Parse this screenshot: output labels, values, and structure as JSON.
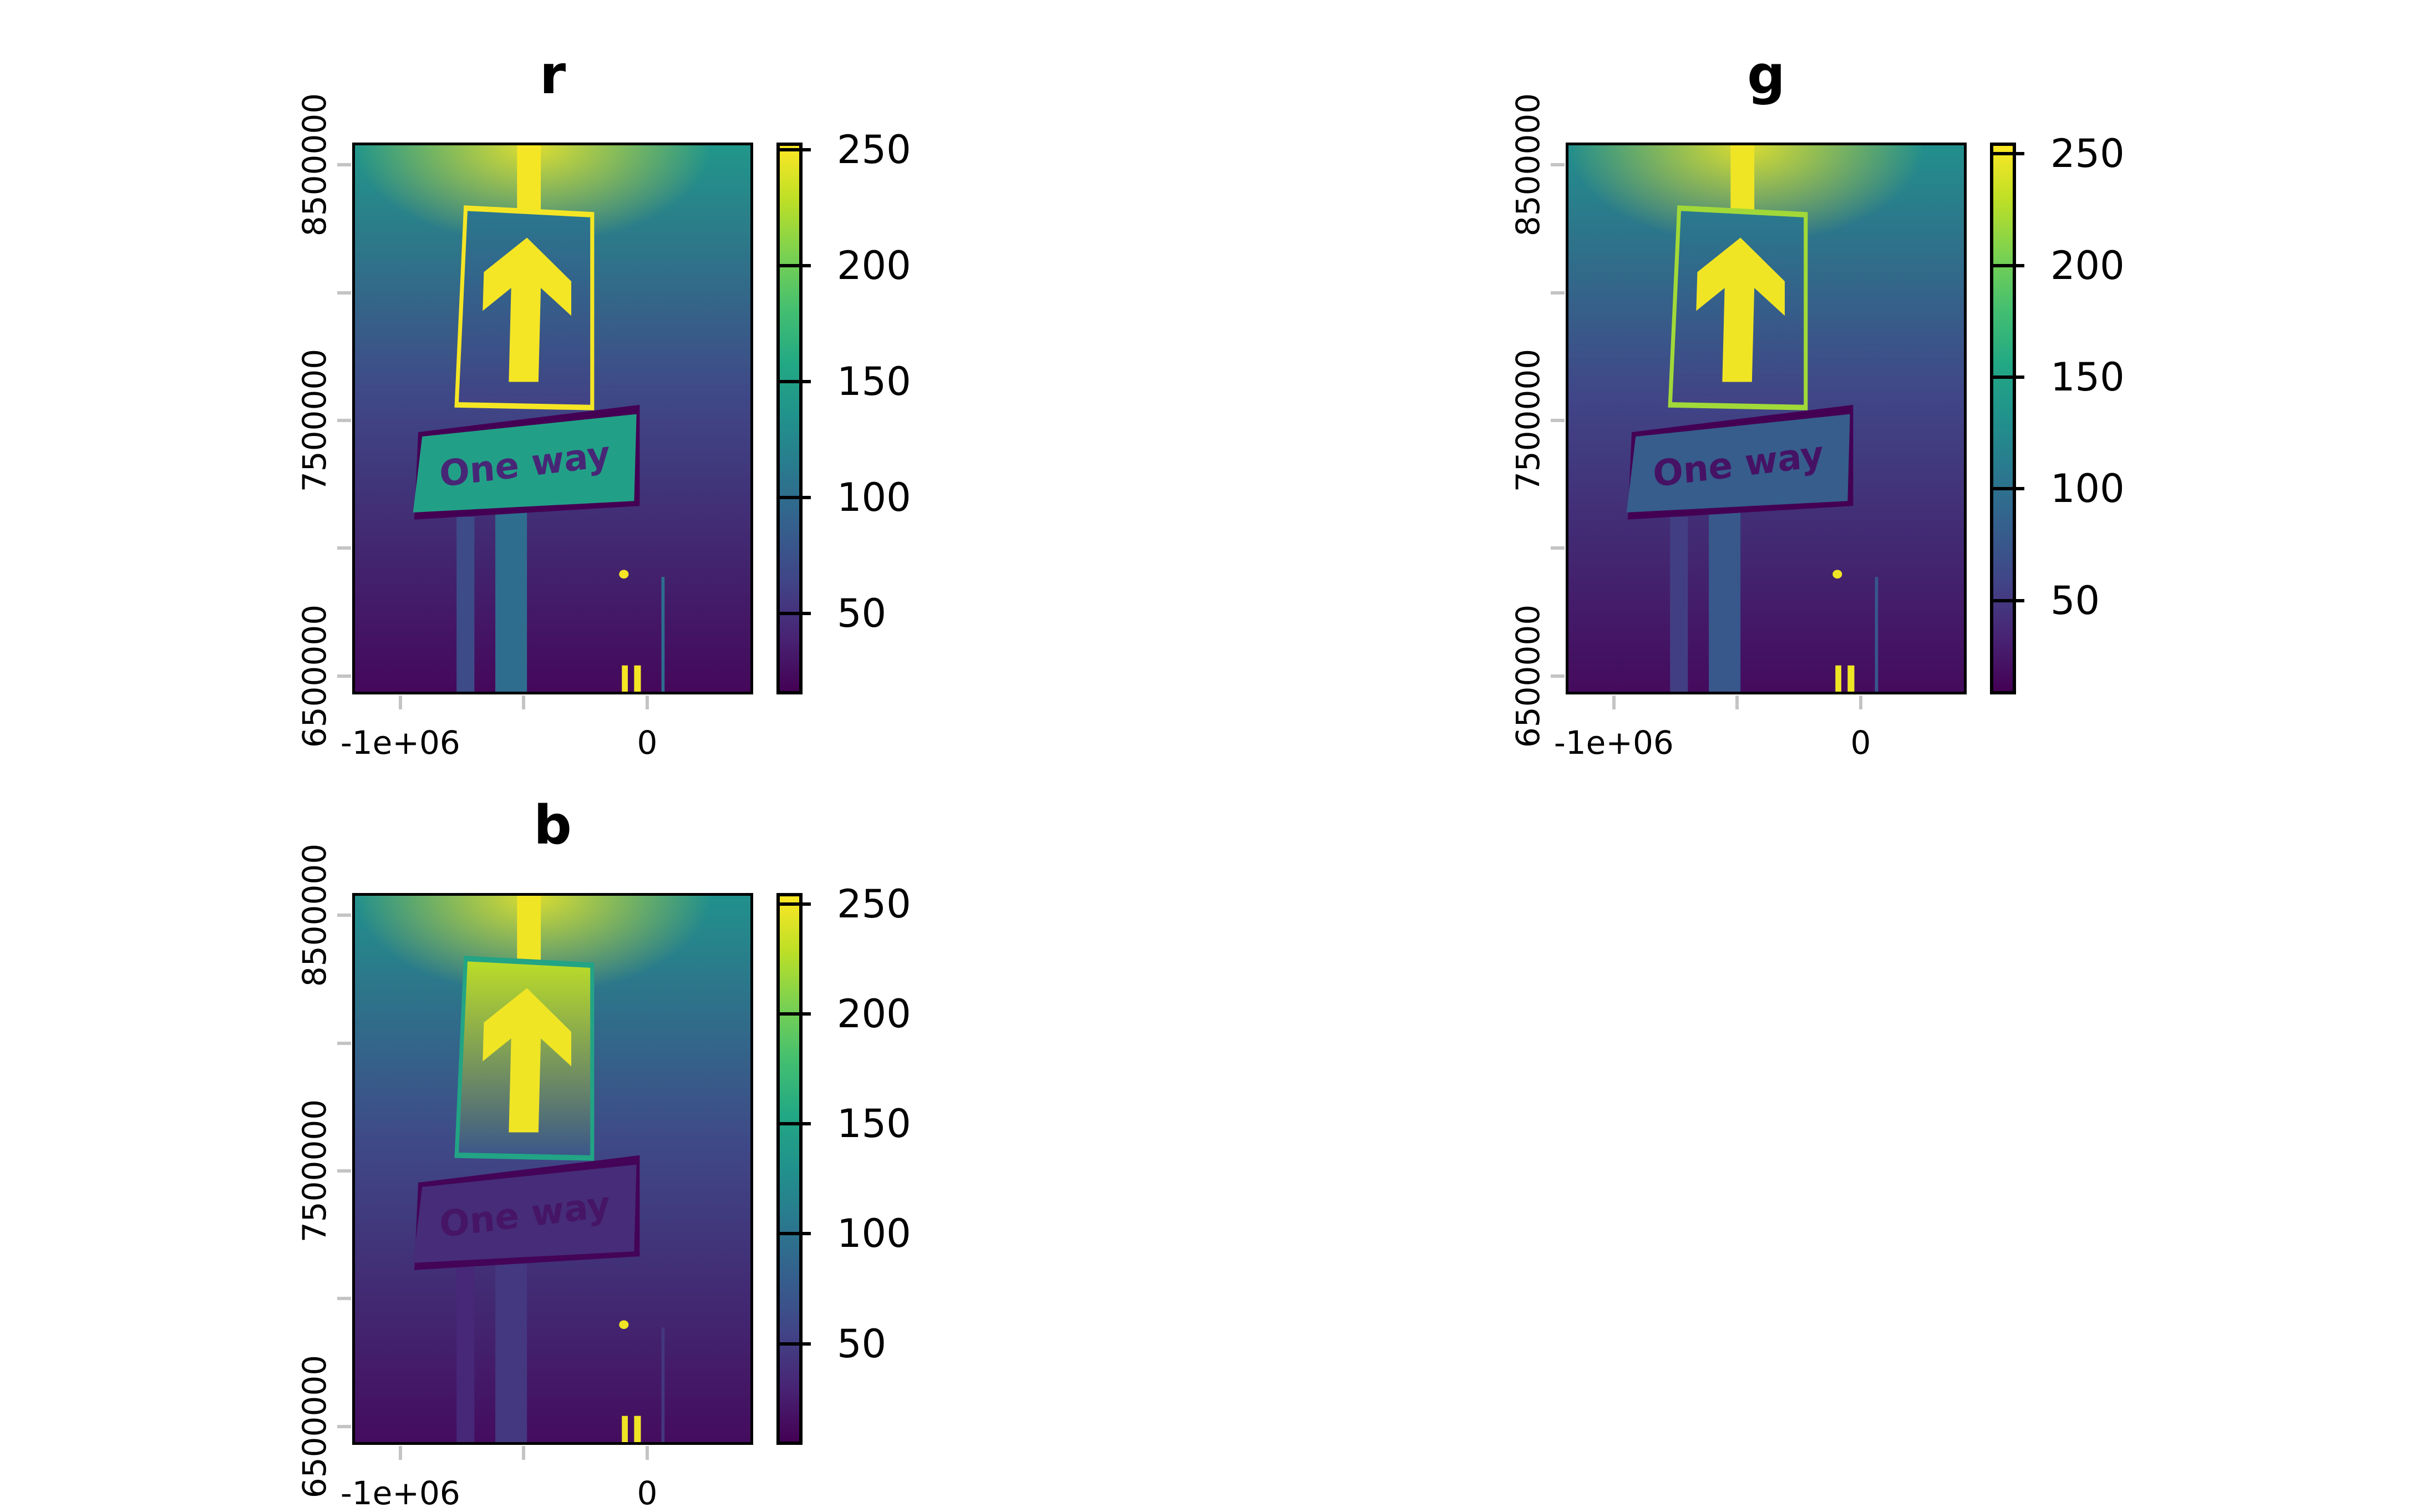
{
  "chart_data": [
    {
      "type": "heatmap",
      "title": "r",
      "xlim": [
        -1195000,
        429000
      ],
      "ylim": [
        6428000,
        8587000
      ],
      "x_ticks": [
        -1000000,
        -500000,
        0
      ],
      "x_tick_labels": [
        "-1e+06",
        "",
        "0"
      ],
      "y_ticks": [
        6500000,
        7000000,
        7500000,
        8000000,
        8500000
      ],
      "y_tick_labels": [
        "6500000",
        "",
        "7500000",
        "",
        "8500000"
      ],
      "colorscale": "viridis",
      "value_range": [
        15,
        253
      ],
      "legend_ticks": [
        50,
        100,
        150,
        200,
        250
      ],
      "legend_tick_labels": [
        "50",
        "100",
        "150",
        "200",
        "250"
      ],
      "legend_placement": "right",
      "image_text": "One way",
      "scene_values": {
        "bg_top": 140,
        "bg_bottom": 20,
        "glow": 250,
        "sign_top": 110,
        "sign_bottom": 60,
        "sign_border": 250,
        "arrow": 250,
        "plate": 150,
        "plate_text": 40,
        "pole": 100,
        "light": 250
      }
    },
    {
      "type": "heatmap",
      "title": "g",
      "xlim": [
        -1195000,
        429000
      ],
      "ylim": [
        6428000,
        8587000
      ],
      "x_ticks": [
        -1000000,
        -500000,
        0
      ],
      "x_tick_labels": [
        "-1e+06",
        "",
        "0"
      ],
      "y_ticks": [
        6500000,
        7000000,
        7500000,
        8000000,
        8500000
      ],
      "y_tick_labels": [
        "6500000",
        "",
        "7500000",
        "",
        "8500000"
      ],
      "colorscale": "viridis",
      "value_range": [
        8,
        255
      ],
      "legend_ticks": [
        50,
        100,
        150,
        200,
        250
      ],
      "legend_tick_labels": [
        "50",
        "100",
        "150",
        "200",
        "250"
      ],
      "legend_placement": "right",
      "image_text": "One way",
      "scene_values": {
        "bg_top": 130,
        "bg_bottom": 15,
        "glow": 250,
        "sign_top": 110,
        "sign_bottom": 55,
        "sign_border": 220,
        "arrow": 250,
        "plate": 80,
        "plate_text": 20,
        "pole": 75,
        "light": 250
      }
    },
    {
      "type": "heatmap",
      "title": "b",
      "xlim": [
        -1195000,
        429000
      ],
      "ylim": [
        6428000,
        8587000
      ],
      "x_ticks": [
        -1000000,
        -500000,
        0
      ],
      "x_tick_labels": [
        "-1e+06",
        "",
        "0"
      ],
      "y_ticks": [
        6500000,
        7000000,
        7500000,
        8000000,
        8500000
      ],
      "y_tick_labels": [
        "6500000",
        "",
        "7500000",
        "",
        "8500000"
      ],
      "colorscale": "viridis",
      "value_range": [
        4,
        255
      ],
      "legend_ticks": [
        50,
        100,
        150,
        200,
        250
      ],
      "legend_tick_labels": [
        "50",
        "100",
        "150",
        "200",
        "250"
      ],
      "legend_placement": "right",
      "image_text": "One way",
      "scene_values": {
        "bg_top": 130,
        "bg_bottom": 12,
        "glow": 250,
        "sign_top": 230,
        "sign_bottom": 70,
        "sign_border": 150,
        "arrow": 250,
        "plate": 35,
        "plate_text": 18,
        "pole": 45,
        "light": 250
      }
    }
  ]
}
